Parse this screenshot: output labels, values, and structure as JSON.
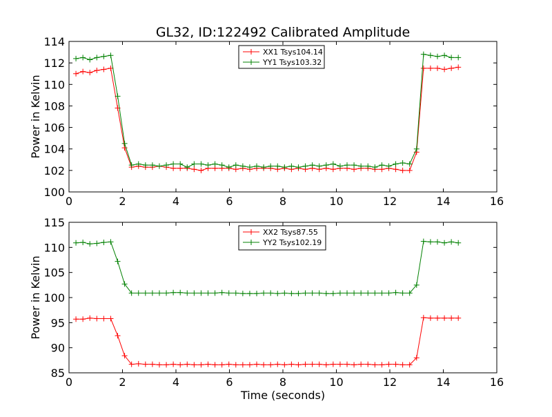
{
  "figure_title": "GL32, ID:122492 Calibrated Amplitude",
  "chart_data": [
    {
      "type": "line",
      "title": "GL32, ID:122492 Calibrated Amplitude",
      "xlabel": "",
      "ylabel": "Power in Kelvin",
      "xlim": [
        0,
        16
      ],
      "ylim": [
        100,
        114
      ],
      "xticks": [
        "0",
        "2",
        "4",
        "6",
        "8",
        "10",
        "12",
        "14",
        "16"
      ],
      "yticks": [
        "100",
        "102",
        "104",
        "106",
        "108",
        "110",
        "112",
        "114"
      ],
      "grid": false,
      "legend_position": "top-center",
      "x": [
        0.26,
        0.52,
        0.78,
        1.04,
        1.3,
        1.56,
        1.82,
        2.08,
        2.34,
        2.6,
        2.86,
        3.12,
        3.38,
        3.64,
        3.9,
        4.16,
        4.42,
        4.68,
        4.94,
        5.2,
        5.46,
        5.72,
        5.98,
        6.24,
        6.5,
        6.76,
        7.02,
        7.28,
        7.54,
        7.8,
        8.06,
        8.32,
        8.58,
        8.84,
        9.1,
        9.36,
        9.62,
        9.88,
        10.14,
        10.4,
        10.66,
        10.92,
        11.18,
        11.44,
        11.7,
        11.96,
        12.22,
        12.48,
        12.74,
        13.0,
        13.26,
        13.52,
        13.78,
        14.04,
        14.3,
        14.56
      ],
      "series": [
        {
          "name": "XX1 Tsys104.14",
          "color": "#ff0000",
          "values": [
            111.0,
            111.2,
            111.1,
            111.3,
            111.4,
            111.5,
            107.8,
            104.1,
            102.3,
            102.4,
            102.3,
            102.3,
            102.4,
            102.3,
            102.2,
            102.2,
            102.2,
            102.1,
            102.0,
            102.2,
            102.2,
            102.2,
            102.2,
            102.1,
            102.2,
            102.1,
            102.2,
            102.2,
            102.2,
            102.1,
            102.2,
            102.1,
            102.2,
            102.1,
            102.2,
            102.1,
            102.2,
            102.1,
            102.2,
            102.2,
            102.1,
            102.2,
            102.2,
            102.1,
            102.1,
            102.2,
            102.1,
            102.0,
            102.0,
            103.7,
            111.5,
            111.5,
            111.5,
            111.4,
            111.5,
            111.6
          ]
        },
        {
          "name": "YY1 Tsys103.32",
          "color": "#008000",
          "values": [
            112.4,
            112.5,
            112.3,
            112.5,
            112.6,
            112.7,
            108.9,
            104.5,
            102.5,
            102.6,
            102.5,
            102.5,
            102.4,
            102.5,
            102.6,
            102.6,
            102.3,
            102.6,
            102.6,
            102.5,
            102.6,
            102.5,
            102.3,
            102.5,
            102.4,
            102.3,
            102.4,
            102.3,
            102.4,
            102.4,
            102.3,
            102.4,
            102.3,
            102.4,
            102.5,
            102.4,
            102.5,
            102.6,
            102.4,
            102.5,
            102.5,
            102.4,
            102.4,
            102.3,
            102.5,
            102.4,
            102.6,
            102.7,
            102.6,
            104.0,
            112.8,
            112.7,
            112.6,
            112.7,
            112.5,
            112.5
          ]
        }
      ]
    },
    {
      "type": "line",
      "title": "",
      "xlabel": "Time (seconds)",
      "ylabel": "Power in Kelvin",
      "xlim": [
        0,
        16
      ],
      "ylim": [
        85,
        115
      ],
      "xticks": [
        "0",
        "2",
        "4",
        "6",
        "8",
        "10",
        "12",
        "14",
        "16"
      ],
      "yticks": [
        "85",
        "90",
        "95",
        "100",
        "105",
        "110",
        "115"
      ],
      "grid": false,
      "legend_position": "top-center",
      "x": [
        0.26,
        0.52,
        0.78,
        1.04,
        1.3,
        1.56,
        1.82,
        2.08,
        2.34,
        2.6,
        2.86,
        3.12,
        3.38,
        3.64,
        3.9,
        4.16,
        4.42,
        4.68,
        4.94,
        5.2,
        5.46,
        5.72,
        5.98,
        6.24,
        6.5,
        6.76,
        7.02,
        7.28,
        7.54,
        7.8,
        8.06,
        8.32,
        8.58,
        8.84,
        9.1,
        9.36,
        9.62,
        9.88,
        10.14,
        10.4,
        10.66,
        10.92,
        11.18,
        11.44,
        11.7,
        11.96,
        12.22,
        12.48,
        12.74,
        13.0,
        13.26,
        13.52,
        13.78,
        14.04,
        14.3,
        14.56
      ],
      "series": [
        {
          "name": "XX2 Tsys87.55",
          "color": "#ff0000",
          "values": [
            95.7,
            95.7,
            95.9,
            95.8,
            95.8,
            95.8,
            92.4,
            88.4,
            86.7,
            86.8,
            86.7,
            86.7,
            86.6,
            86.6,
            86.7,
            86.6,
            86.7,
            86.6,
            86.6,
            86.7,
            86.6,
            86.6,
            86.7,
            86.6,
            86.6,
            86.6,
            86.7,
            86.6,
            86.6,
            86.7,
            86.6,
            86.7,
            86.6,
            86.7,
            86.7,
            86.7,
            86.6,
            86.7,
            86.7,
            86.7,
            86.6,
            86.7,
            86.7,
            86.6,
            86.6,
            86.7,
            86.7,
            86.6,
            86.6,
            88.0,
            96.0,
            95.9,
            95.9,
            95.9,
            95.9,
            95.9
          ]
        },
        {
          "name": "YY2 Tsys102.19",
          "color": "#008000",
          "values": [
            110.9,
            111.0,
            110.7,
            110.8,
            111.0,
            111.1,
            107.2,
            102.7,
            100.9,
            100.9,
            100.9,
            100.9,
            100.9,
            100.9,
            101.0,
            101.0,
            100.9,
            100.9,
            100.9,
            100.9,
            100.9,
            101.0,
            100.9,
            100.9,
            100.8,
            100.8,
            100.8,
            100.9,
            100.9,
            100.8,
            100.9,
            100.8,
            100.8,
            100.9,
            100.9,
            100.9,
            100.8,
            100.8,
            100.9,
            100.9,
            100.9,
            100.9,
            100.9,
            100.9,
            100.9,
            100.9,
            101.0,
            100.9,
            100.9,
            102.5,
            111.2,
            111.1,
            111.1,
            110.9,
            111.1,
            110.9
          ]
        }
      ]
    }
  ]
}
